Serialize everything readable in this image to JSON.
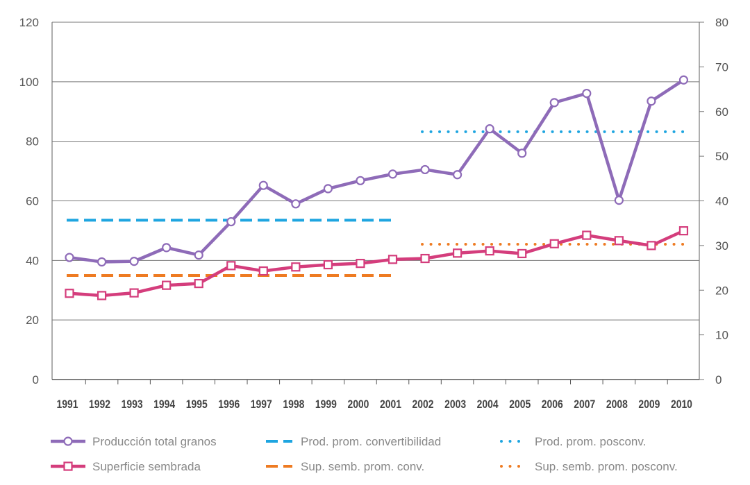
{
  "chart_data": {
    "type": "line",
    "x": [
      "1991",
      "1992",
      "1993",
      "1994",
      "1995",
      "1996",
      "1997",
      "1998",
      "1999",
      "2000",
      "2001",
      "2002",
      "2003",
      "2004",
      "2005",
      "2006",
      "2007",
      "2008",
      "2009",
      "2010"
    ],
    "left_axis": {
      "ylim": [
        0,
        120
      ],
      "ticks": [
        "0",
        "20",
        "40",
        "60",
        "80",
        "100",
        "120"
      ]
    },
    "right_axis": {
      "ylim": [
        0,
        80
      ],
      "ticks": [
        "0",
        "10",
        "20",
        "30",
        "40",
        "50",
        "60",
        "70",
        "80"
      ]
    },
    "grid": true,
    "legend_position": "bottom",
    "series": [
      {
        "name": "Producción total granos",
        "axis": "left",
        "style": "line-circle",
        "color": "#8e6bb8",
        "values": [
          41,
          39.5,
          39.7,
          44.3,
          41.8,
          53,
          65.2,
          59,
          64.1,
          66.8,
          69,
          70.5,
          68.8,
          84.2,
          76,
          93,
          96.1,
          60.2,
          93.5,
          100.6
        ]
      },
      {
        "name": "Superficie sembrada",
        "axis": "right",
        "style": "line-square",
        "color": "#d43d7c",
        "values": [
          19.3,
          18.8,
          19.4,
          21.1,
          21.5,
          25.5,
          24.3,
          25.2,
          25.7,
          26.0,
          26.9,
          27.1,
          28.3,
          28.8,
          28.2,
          30.4,
          32.3,
          31.1,
          30.0,
          33.3
        ]
      },
      {
        "name": "Prod. prom. convertibilidad",
        "axis": "left",
        "style": "dashed",
        "color": "#1ea5e0",
        "x_range": [
          "1991",
          "2001"
        ],
        "value": 53.5
      },
      {
        "name": "Sup. semb. prom. conv.",
        "axis": "right",
        "style": "dashed",
        "color": "#ee7b22",
        "x_range": [
          "1991",
          "2001"
        ],
        "value": 23.3
      },
      {
        "name": "Prod. prom. posconv.",
        "axis": "left",
        "style": "dotted",
        "color": "#1ea5e0",
        "x_range": [
          "2002",
          "2010"
        ],
        "value": 83.2
      },
      {
        "name": "Sup. semb. prom. posconv.",
        "axis": "right",
        "style": "dotted",
        "color": "#ee7b22",
        "x_range": [
          "2002",
          "2010"
        ],
        "value": 30.3
      }
    ]
  }
}
